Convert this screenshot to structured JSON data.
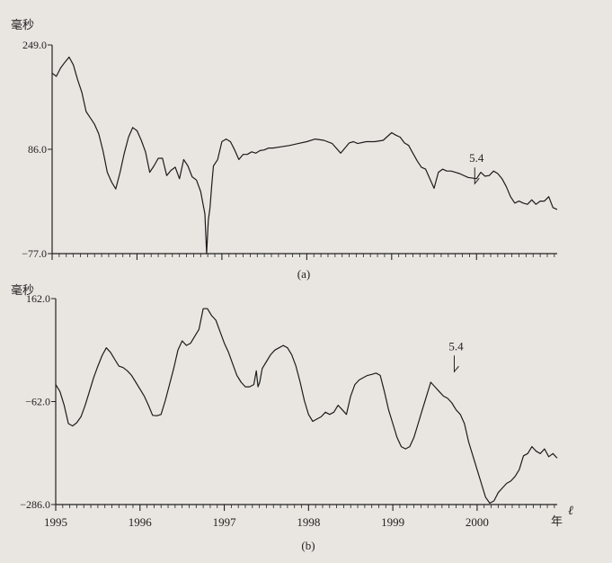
{
  "chart_data": [
    {
      "panel": "(a)",
      "type": "line",
      "ylabel": "毫秒",
      "ylim": [
        -77.0,
        249.0
      ],
      "yticks": [
        249.0,
        86.0,
        -77.0
      ],
      "ytick_labels": [
        "249.0",
        "86.0",
        "−77.0"
      ],
      "xlim": [
        1995.0,
        2000.95
      ],
      "annotation": {
        "text": "5.4",
        "x": 2000.0,
        "y": 66.0
      },
      "series": [
        {
          "x": [
            1995.0,
            1995.05,
            1995.1,
            1995.15,
            1995.2,
            1995.25,
            1995.3,
            1995.35,
            1995.4,
            1995.45,
            1995.5,
            1995.55,
            1995.6,
            1995.65,
            1995.7,
            1995.75,
            1995.8,
            1995.85,
            1995.9,
            1995.95,
            1996.0,
            1996.05,
            1996.1,
            1996.15,
            1996.2,
            1996.25,
            1996.3,
            1996.35,
            1996.4,
            1996.45,
            1996.5,
            1996.55,
            1996.6,
            1996.65,
            1996.7,
            1996.75,
            1996.8,
            1996.82,
            1996.84,
            1996.86,
            1996.88,
            1996.9,
            1996.95,
            1997.0,
            1997.05,
            1997.1,
            1997.15,
            1997.2,
            1997.25,
            1997.3,
            1997.35,
            1997.4,
            1997.45,
            1997.5,
            1997.55,
            1997.6,
            1997.7,
            1997.8,
            1997.9,
            1998.0,
            1998.1,
            1998.2,
            1998.3,
            1998.4,
            1998.5,
            1998.55,
            1998.6,
            1998.7,
            1998.8,
            1998.9,
            1999.0,
            1999.05,
            1999.1,
            1999.15,
            1999.2,
            1999.25,
            1999.3,
            1999.35,
            1999.4,
            1999.45,
            1999.5,
            1999.55,
            1999.6,
            1999.65,
            1999.7,
            1999.8,
            1999.9,
            2000.0,
            2000.05,
            2000.1,
            2000.15,
            2000.2,
            2000.25,
            2000.3,
            2000.35,
            2000.4,
            2000.45,
            2000.5,
            2000.55,
            2000.6,
            2000.65,
            2000.7,
            2000.75,
            2000.8,
            2000.85,
            2000.9,
            2000.95
          ],
          "y": [
            205.0,
            200.0,
            213.0,
            222.0,
            230.0,
            218.0,
            195.0,
            175.0,
            145.0,
            135.0,
            125.0,
            110.0,
            83.0,
            50.0,
            35.0,
            24.0,
            50.0,
            80.0,
            105.0,
            120.0,
            115.0,
            100.0,
            82.0,
            50.0,
            60.0,
            72.0,
            72.0,
            45.0,
            53.0,
            58.0,
            40.0,
            70.0,
            60.0,
            43.0,
            38.0,
            20.0,
            -15.0,
            -77.0,
            -25.0,
            -5.0,
            30.0,
            60.0,
            70.0,
            98.0,
            102.0,
            98.0,
            85.0,
            70.0,
            78.0,
            78.0,
            82.0,
            80.0,
            84.0,
            85.0,
            88.0,
            88.0,
            90.0,
            92.0,
            95.0,
            98.0,
            102.0,
            100.0,
            95.0,
            80.0,
            96.0,
            98.0,
            95.0,
            98.0,
            98.0,
            100.0,
            112.0,
            108.0,
            105.0,
            96.0,
            92.0,
            80.0,
            68.0,
            58.0,
            55.0,
            40.0,
            25.0,
            50.0,
            55.0,
            52.0,
            52.0,
            48.0,
            42.0,
            40.0,
            50.0,
            44.0,
            45.0,
            52.0,
            48.0,
            40.0,
            28.0,
            12.0,
            2.0,
            5.0,
            2.0,
            0.0,
            7.0,
            0.0,
            5.0,
            5.0,
            12.0,
            -5.0,
            -8.0
          ]
        }
      ]
    },
    {
      "panel": "(b)",
      "type": "line",
      "ylabel": "毫秒",
      "xlabel": "年",
      "ylim": [
        -286.0,
        162.0
      ],
      "yticks": [
        162.0,
        -62.0,
        -286.0
      ],
      "ytick_labels": [
        "162.0",
        "−62.0",
        "−286.0"
      ],
      "xlim": [
        1995.0,
        2000.95
      ],
      "xticks": [
        1995,
        1996,
        1997,
        1998,
        1999,
        2000
      ],
      "xtick_labels": [
        "1995",
        "1996",
        "1997",
        "1998",
        "1999",
        "2000"
      ],
      "annotation": {
        "text": "5.4",
        "x": 1999.75,
        "y": 50.0
      },
      "series": [
        {
          "x": [
            1995.0,
            1995.05,
            1995.1,
            1995.15,
            1995.2,
            1995.25,
            1995.3,
            1995.35,
            1995.4,
            1995.45,
            1995.5,
            1995.55,
            1995.6,
            1995.65,
            1995.7,
            1995.75,
            1995.8,
            1995.85,
            1995.9,
            1995.95,
            1996.0,
            1996.05,
            1996.1,
            1996.15,
            1996.2,
            1996.25,
            1996.3,
            1996.35,
            1996.4,
            1996.45,
            1996.5,
            1996.55,
            1996.6,
            1996.65,
            1996.7,
            1996.75,
            1996.8,
            1996.85,
            1996.9,
            1996.95,
            1997.0,
            1997.05,
            1997.1,
            1997.15,
            1997.2,
            1997.25,
            1997.3,
            1997.35,
            1997.38,
            1997.4,
            1997.42,
            1997.45,
            1997.5,
            1997.55,
            1997.6,
            1997.65,
            1997.7,
            1997.75,
            1997.8,
            1997.85,
            1997.9,
            1997.95,
            1998.0,
            1998.05,
            1998.1,
            1998.15,
            1998.2,
            1998.25,
            1998.3,
            1998.35,
            1998.4,
            1998.45,
            1998.5,
            1998.55,
            1998.6,
            1998.65,
            1998.7,
            1998.75,
            1998.8,
            1998.85,
            1998.9,
            1998.95,
            1999.0,
            1999.05,
            1999.1,
            1999.15,
            1999.2,
            1999.25,
            1999.3,
            1999.35,
            1999.4,
            1999.45,
            1999.5,
            1999.55,
            1999.6,
            1999.65,
            1999.7,
            1999.75,
            1999.8,
            1999.85,
            1999.9,
            1999.95,
            2000.0,
            2000.05,
            2000.1,
            2000.15,
            2000.2,
            2000.25,
            2000.3,
            2000.35,
            2000.4,
            2000.45,
            2000.5,
            2000.55,
            2000.6,
            2000.65,
            2000.7,
            2000.75,
            2000.8,
            2000.85,
            2000.9,
            2000.95
          ],
          "y": [
            -25.0,
            -40.0,
            -70.0,
            -110.0,
            -115.0,
            -108.0,
            -95.0,
            -70.0,
            -40.0,
            -10.0,
            15.0,
            38.0,
            55.0,
            45.0,
            30.0,
            15.0,
            12.0,
            5.0,
            -5.0,
            -20.0,
            -35.0,
            -50.0,
            -70.0,
            -92.0,
            -93.0,
            -90.0,
            -60.0,
            -25.0,
            10.0,
            50.0,
            70.0,
            60.0,
            65.0,
            80.0,
            95.0,
            140.0,
            140.0,
            125.0,
            115.0,
            90.0,
            65.0,
            45.0,
            20.0,
            -5.0,
            -20.0,
            -30.0,
            -30.0,
            -25.0,
            5.0,
            -30.0,
            -20.0,
            10.0,
            25.0,
            40.0,
            50.0,
            55.0,
            60.0,
            55.0,
            40.0,
            15.0,
            -20.0,
            -60.0,
            -90.0,
            -105.0,
            -100.0,
            -95.0,
            -85.0,
            -90.0,
            -85.0,
            -70.0,
            -80.0,
            -90.0,
            -50.0,
            -25.0,
            -15.0,
            -10.0,
            -5.0,
            -3.0,
            0.0,
            -5.0,
            -40.0,
            -80.0,
            -110.0,
            -140.0,
            -160.0,
            -165.0,
            -160.0,
            -140.0,
            -110.0,
            -80.0,
            -50.0,
            -20.0,
            -30.0,
            -40.0,
            -50.0,
            -55.0,
            -65.0,
            -80.0,
            -90.0,
            -110.0,
            -150.0,
            -180.0,
            -210.0,
            -240.0,
            -270.0,
            -283.0,
            -278.0,
            -260.0,
            -250.0,
            -240.0,
            -235.0,
            -225.0,
            -210.0,
            -180.0,
            -175.0,
            -160.0,
            -170.0,
            -175.0,
            -165.0,
            -182.0,
            -175.0,
            -185.0
          ]
        }
      ]
    }
  ],
  "captions": {
    "a": "(a)",
    "b": "(b)"
  },
  "marks": {
    "corner": "ℓ"
  }
}
